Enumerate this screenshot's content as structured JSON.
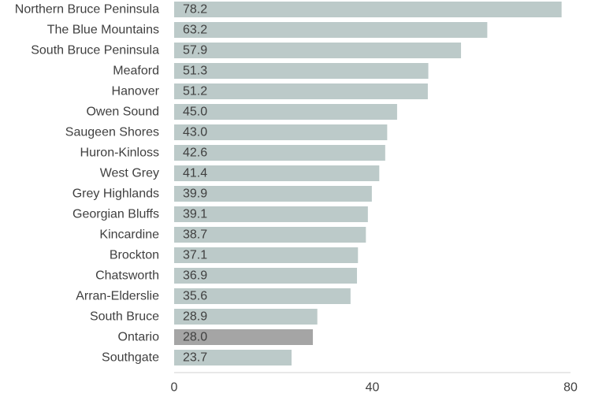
{
  "chart_data": {
    "type": "bar",
    "orientation": "horizontal",
    "categories": [
      "Northern Bruce Peninsula",
      "The Blue Mountains",
      "South Bruce Peninsula",
      "Meaford",
      "Hanover",
      "Owen Sound",
      "Saugeen Shores",
      "Huron-Kinloss",
      "West Grey",
      "Grey Highlands",
      "Georgian Bluffs",
      "Kincardine",
      "Brockton",
      "Chatsworth",
      "Arran-Elderslie",
      "South Bruce",
      "Ontario",
      "Southgate"
    ],
    "values": [
      78.2,
      63.2,
      57.9,
      51.3,
      51.2,
      45.0,
      43.0,
      42.6,
      41.4,
      39.9,
      39.1,
      38.7,
      37.1,
      36.9,
      35.6,
      28.9,
      28.0,
      23.7
    ],
    "value_labels": [
      "78.2",
      "63.2",
      "57.9",
      "51.3",
      "51.2",
      "45.0",
      "43.0",
      "42.6",
      "41.4",
      "39.9",
      "39.1",
      "38.7",
      "37.1",
      "36.9",
      "35.6",
      "28.9",
      "28.0",
      "23.7"
    ],
    "xlim": [
      0,
      80
    ],
    "xticks": [
      "0",
      "40",
      "80"
    ],
    "grid": false,
    "colors": {
      "bar": "#bccac9",
      "highlight": "#a5a5a5",
      "axis": "#d0d0d0",
      "text": "#404040"
    },
    "highlight_category": "Ontario"
  }
}
